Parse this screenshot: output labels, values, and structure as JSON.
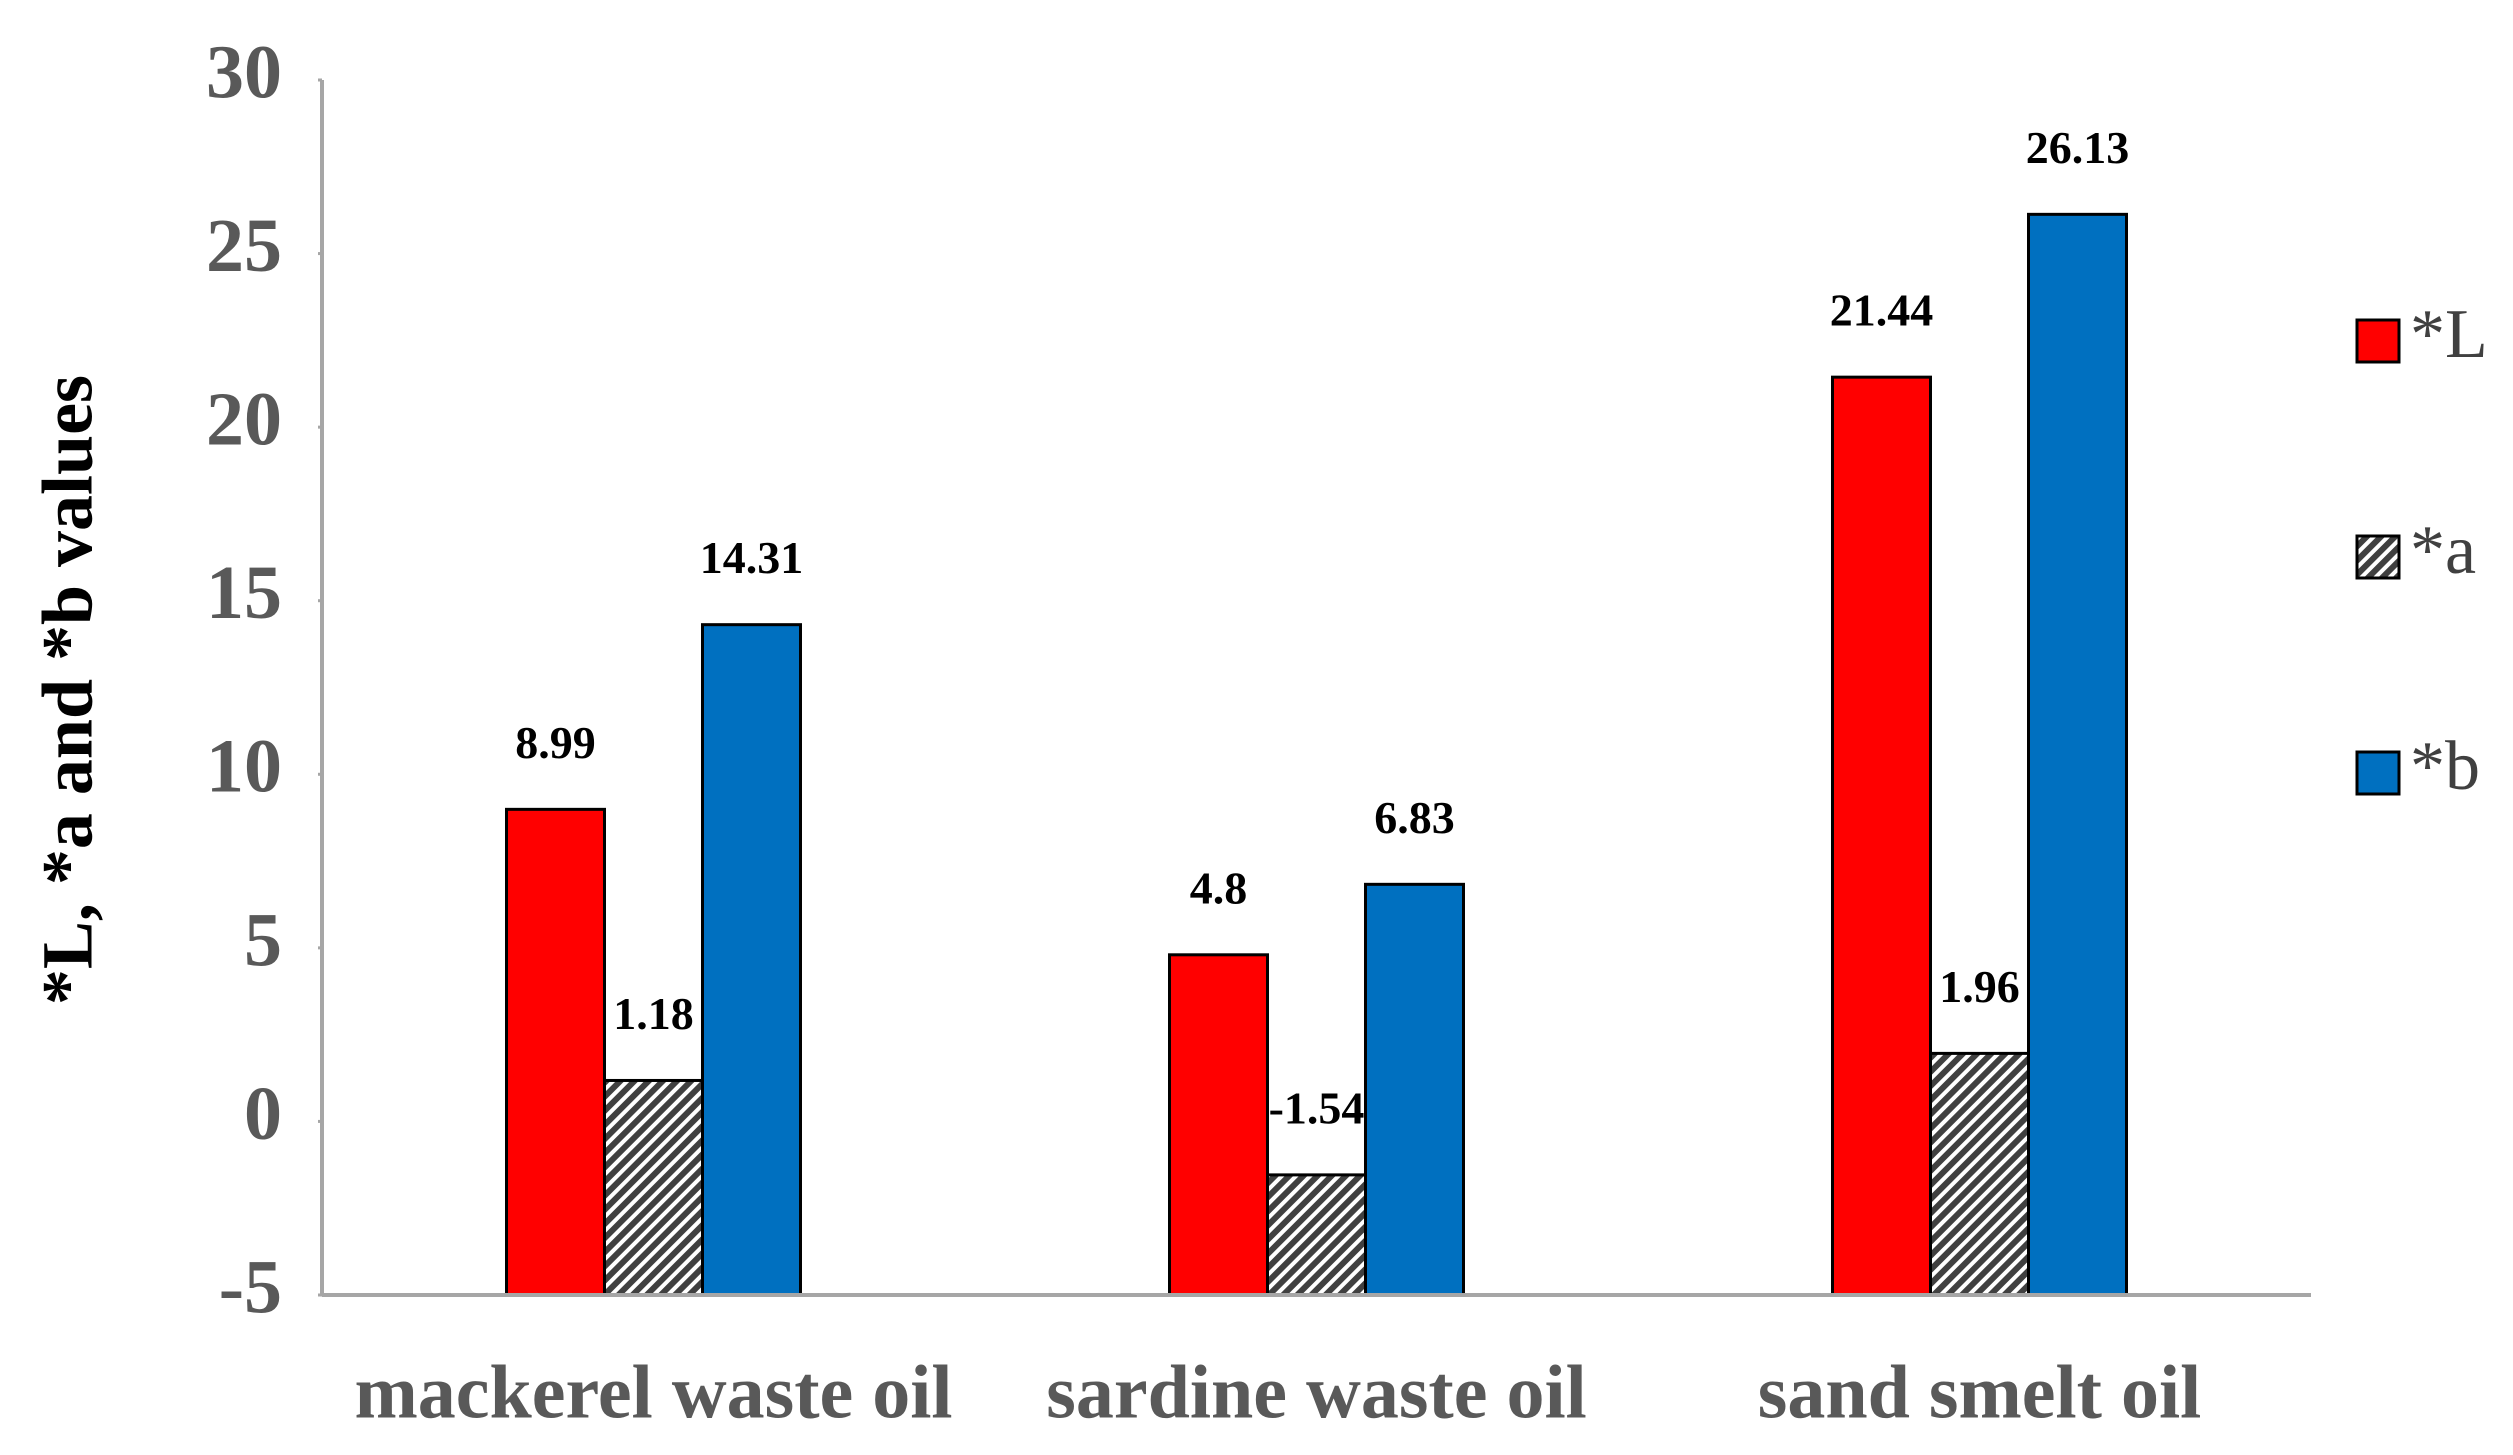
{
  "chart_data": {
    "type": "bar",
    "y_label": "*L, *a and *b values",
    "categories": [
      "mackerel waste oil",
      "sardine waste oil",
      "sand smelt oil"
    ],
    "series": [
      {
        "name": "*L",
        "color": "#ff0000",
        "values": [
          8.99,
          4.8,
          21.44
        ]
      },
      {
        "name": "*a",
        "color": "#404040",
        "hatch": true,
        "values": [
          1.18,
          -1.54,
          1.96
        ]
      },
      {
        "name": "*b",
        "color": "#0070c0",
        "values": [
          14.31,
          6.83,
          26.13
        ]
      }
    ],
    "ylim": [
      -5,
      30
    ],
    "yticks": [
      -5,
      0,
      5,
      10,
      15,
      20,
      25,
      30
    ],
    "grid": false,
    "legend": "right"
  }
}
